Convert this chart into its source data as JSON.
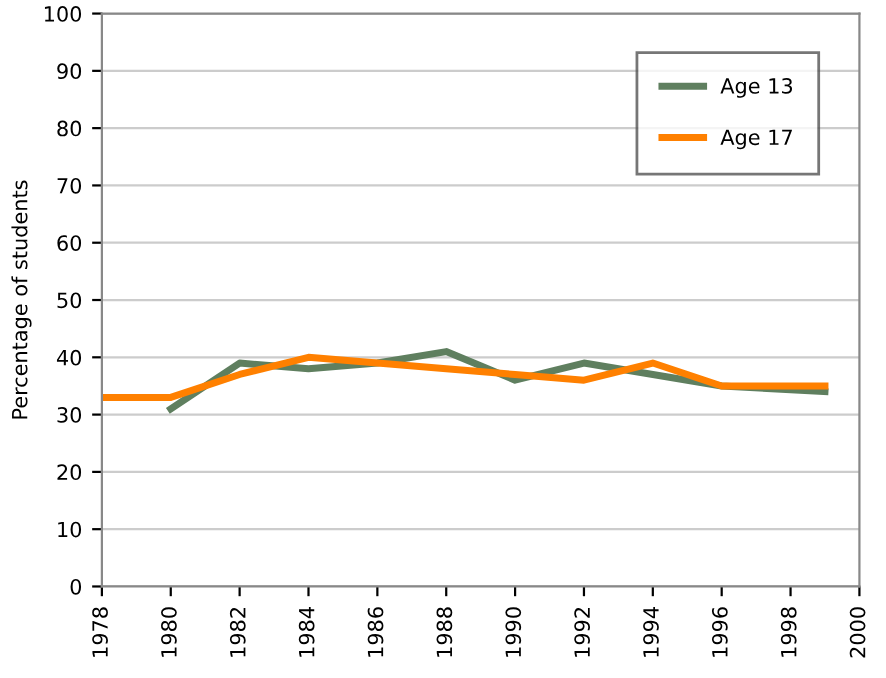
{
  "chart_data": {
    "type": "line",
    "ylabel": "Percentage of students",
    "series": [
      {
        "name": "Age 13",
        "color": "#5f7f5f",
        "x": [
          1980,
          1982,
          1984,
          1986,
          1988,
          1990,
          1992,
          1994,
          1996,
          1999
        ],
        "values": [
          31,
          39,
          38,
          39,
          41,
          36,
          39,
          37,
          35,
          34
        ]
      },
      {
        "name": "Age 17",
        "color": "#ff8000",
        "x": [
          1978,
          1980,
          1982,
          1984,
          1986,
          1988,
          1990,
          1992,
          1994,
          1996,
          1999
        ],
        "values": [
          33,
          33,
          37,
          40,
          39,
          38,
          37,
          36,
          39,
          35,
          35
        ]
      }
    ],
    "xlim": [
      1978,
      2000
    ],
    "xticks": [
      1978,
      1980,
      1982,
      1984,
      1986,
      1988,
      1990,
      1992,
      1994,
      1996,
      1998,
      2000
    ],
    "ylim": [
      0,
      100
    ],
    "yticks": [
      0,
      10,
      20,
      30,
      40,
      50,
      60,
      70,
      80,
      90,
      100
    ],
    "grid": "y",
    "legend": "top right",
    "marker": "none",
    "line_style": "solid"
  }
}
